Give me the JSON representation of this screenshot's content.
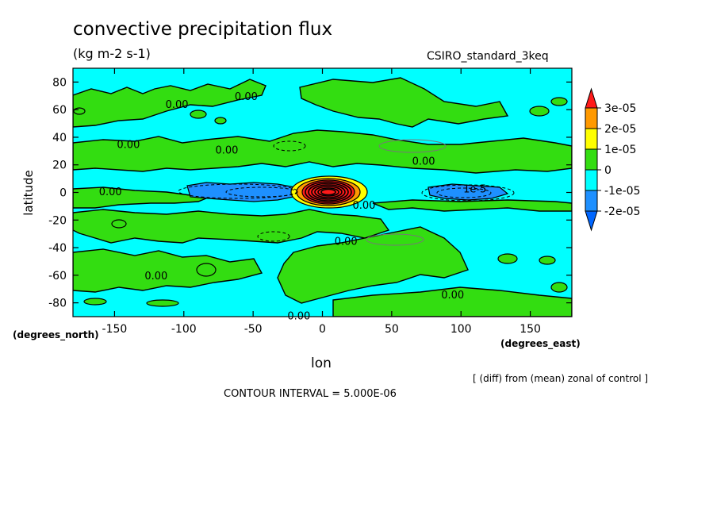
{
  "chart_data": {
    "type": "heatmap",
    "title": "convective precipitation flux",
    "units": "(kg m-2 s-1)",
    "dataset_label": "CSIRO_standard_3keq",
    "xlabel": "lon",
    "ylabel": "latitude",
    "x_units": "(degrees_east)",
    "y_units": "(degrees_north)",
    "xlim": [
      -180,
      180
    ],
    "ylim": [
      -90,
      90
    ],
    "x_ticks": [
      -150,
      -100,
      -50,
      0,
      50,
      100,
      150
    ],
    "y_ticks": [
      80,
      60,
      40,
      20,
      0,
      -20,
      -40,
      -60,
      -80
    ],
    "note": "[ (diff) from (mean) zonal of control ]",
    "contour_interval_text": "CONTOUR INTERVAL = 5.000E-06",
    "colorbar": {
      "labels": [
        "3e-05",
        "2e-05",
        "1e-05",
        "0",
        "-1e-05",
        "-2e-05"
      ],
      "bands": [
        {
          "from": 3e-05,
          "to": 4e-05,
          "color": "#ff1a1a"
        },
        {
          "from": 2e-05,
          "to": 3e-05,
          "color": "#ff9900"
        },
        {
          "from": 1e-05,
          "to": 2e-05,
          "color": "#ffff00"
        },
        {
          "from": 0,
          "to": 1e-05,
          "color": "#33dd11"
        },
        {
          "from": -1e-05,
          "to": 0,
          "color": "#00ffff"
        },
        {
          "from": -2e-05,
          "to": -1e-05,
          "color": "#1e90ff"
        },
        {
          "from": -3e-05,
          "to": -2e-05,
          "color": "#0066ff"
        }
      ]
    },
    "contour_labels": [
      {
        "text": "0.00",
        "lon": -105,
        "lat": 64
      },
      {
        "text": "0.00",
        "lon": -55,
        "lat": 70
      },
      {
        "text": "0.00",
        "lon": -140,
        "lat": 35
      },
      {
        "text": "0.00",
        "lon": -69,
        "lat": 31
      },
      {
        "text": "0.00",
        "lon": 73,
        "lat": 23
      },
      {
        "text": "0.00",
        "lon": -153,
        "lat": 1
      },
      {
        "text": "1e-5",
        "lon": 110,
        "lat": 3
      },
      {
        "text": "0.00",
        "lon": 30,
        "lat": -9
      },
      {
        "text": "0.00",
        "lon": 17,
        "lat": -35
      },
      {
        "text": "0.00",
        "lon": -120,
        "lat": -60
      },
      {
        "text": "0.00",
        "lon": 94,
        "lat": -74
      },
      {
        "text": "0.00",
        "lon": -17,
        "lat": -89
      }
    ]
  }
}
